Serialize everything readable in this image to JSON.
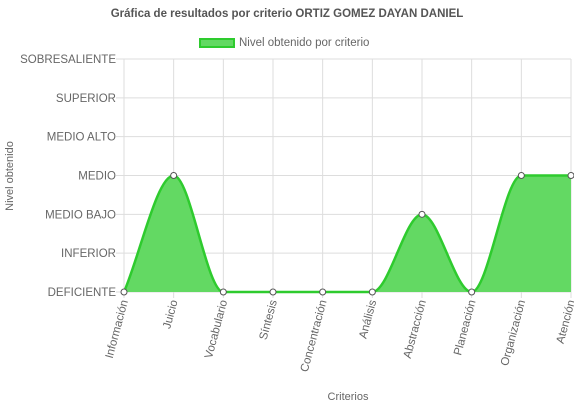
{
  "chart_data": {
    "type": "area",
    "title": "Gráfica de resultados por criterio ORTIZ GOMEZ DAYAN DANIEL",
    "xlabel": "Criterios",
    "ylabel": "Nivel obtenido",
    "y_levels": [
      "DEFICIENTE",
      "INFERIOR",
      "MEDIO BAJO",
      "MEDIO",
      "MEDIO ALTO",
      "SUPERIOR",
      "SOBRESALIENTE"
    ],
    "ylim": [
      0,
      6
    ],
    "categories": [
      "Información",
      "Juicio",
      "Vocabulario",
      "Síntesis",
      "Concentración",
      "Análisis",
      "Abstracción",
      "Planeación",
      "Organización",
      "Atención"
    ],
    "series": [
      {
        "name": "Nivel obtenido por criterio",
        "values": [
          0,
          3,
          0,
          0,
          0,
          0,
          2,
          0,
          3,
          3
        ]
      }
    ],
    "legend": "top-center",
    "grid": true,
    "colors": {
      "fill": "#63d963",
      "line": "#2ecb2e",
      "grid": "#dddddd",
      "point_fill": "#ffffff",
      "point_stroke": "#555555"
    }
  }
}
